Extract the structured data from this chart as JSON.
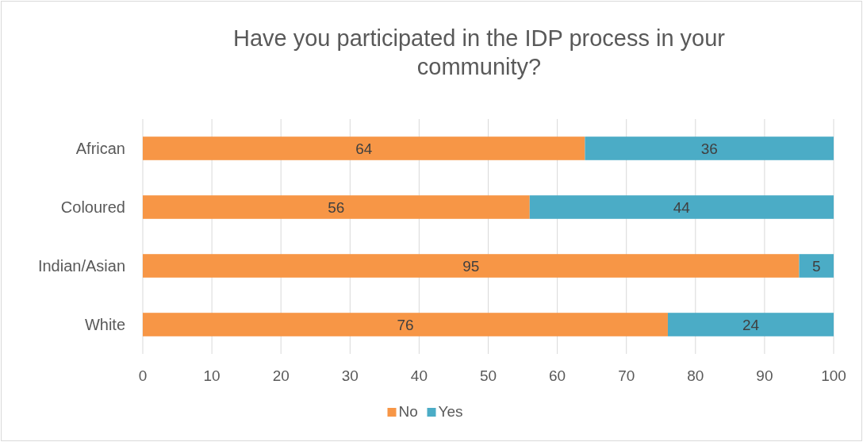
{
  "chart_data": {
    "type": "bar",
    "title": "Have you participated in the IDP process in your community?",
    "orientation": "horizontal",
    "stacked": true,
    "categories": [
      "African",
      "Coloured",
      "Indian/Asian",
      "White"
    ],
    "series": [
      {
        "name": "No",
        "color": "#f79646",
        "values": [
          64,
          56,
          95,
          76
        ]
      },
      {
        "name": "Yes",
        "color": "#4bacc6",
        "values": [
          36,
          44,
          5,
          24
        ]
      }
    ],
    "xlim": [
      0,
      100
    ],
    "xticks": [
      0,
      10,
      20,
      30,
      40,
      50,
      60,
      70,
      80,
      90,
      100
    ],
    "grid": "x",
    "legend": "bottom",
    "data_labels": true
  }
}
